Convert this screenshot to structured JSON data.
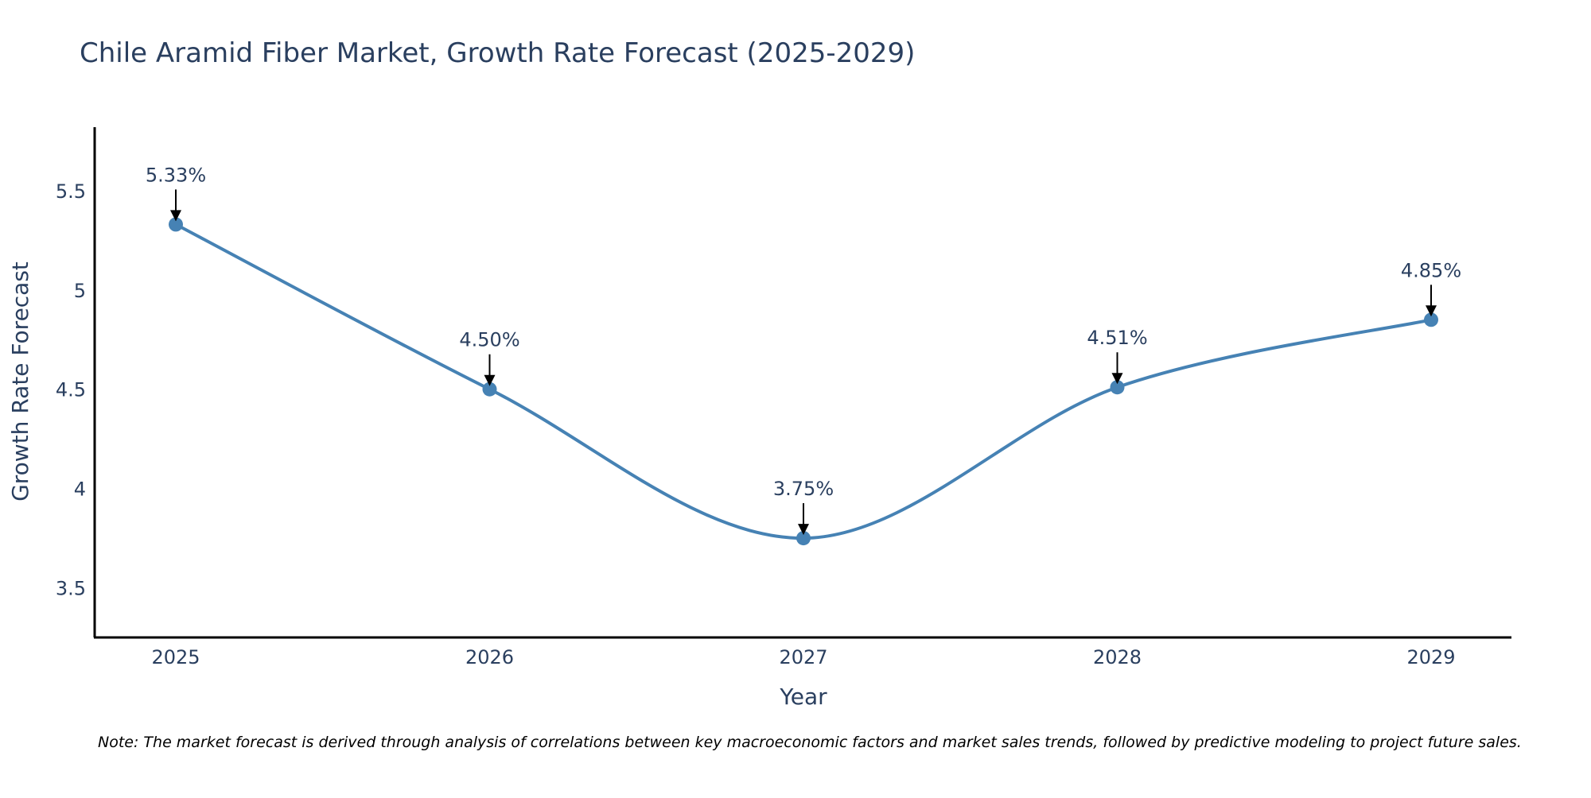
{
  "chart_data": {
    "type": "line",
    "title": "Chile Aramid Fiber Market, Growth Rate Forecast (2025-2029)",
    "xlabel": "Year",
    "ylabel": "Growth Rate Forecast",
    "categories": [
      "2025",
      "2026",
      "2027",
      "2028",
      "2029"
    ],
    "series": [
      {
        "name": "Growth Rate Forecast",
        "values": [
          5.33,
          4.5,
          3.75,
          4.51,
          4.85
        ],
        "labels": [
          "5.33%",
          "4.50%",
          "3.75%",
          "4.51%",
          "4.85%"
        ]
      }
    ],
    "ylim": [
      3.25,
      5.82
    ],
    "yticks": [
      3.5,
      4,
      4.5,
      5,
      5.5
    ],
    "ytick_labels": [
      "3.5",
      "4",
      "4.5",
      "5",
      "5.5"
    ],
    "grid": false,
    "line_shape": "spline",
    "note": "Note: The market forecast is derived through analysis of correlations between key macroeconomic factors and market sales trends, followed by predictive modeling to project future sales."
  },
  "colors": {
    "line": "#4682B4",
    "marker": "#4682B4",
    "text": "#2a3f5f",
    "axis": "#000000",
    "arrow": "#000000"
  }
}
